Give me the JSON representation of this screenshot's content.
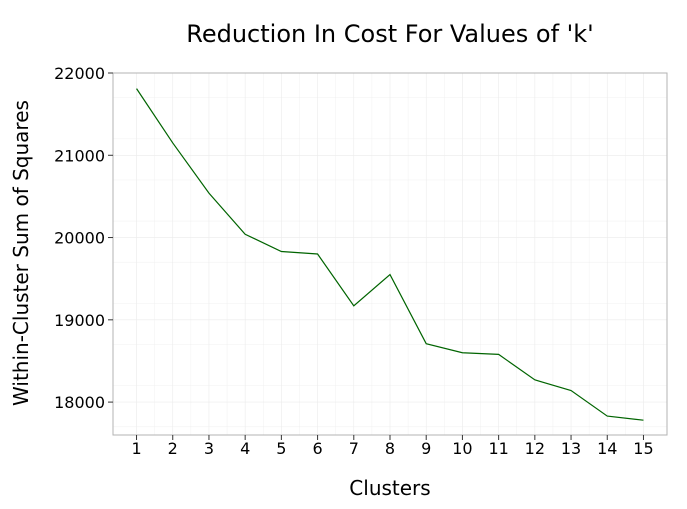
{
  "chart_data": {
    "type": "line",
    "title": "Reduction In Cost For Values of 'k'",
    "xlabel": "Clusters",
    "ylabel": "Within-Cluster Sum of Squares",
    "x": [
      1,
      2,
      3,
      4,
      5,
      6,
      7,
      8,
      9,
      10,
      11,
      12,
      13,
      14,
      15
    ],
    "x_tick_labels": [
      "1",
      "2",
      "3",
      "4",
      "5",
      "6",
      "7",
      "8",
      "9",
      "10",
      "11",
      "12",
      "13",
      "14",
      "15"
    ],
    "y_ticks": [
      18000,
      19000,
      20000,
      21000,
      22000
    ],
    "y_tick_labels": [
      "18000",
      "19000",
      "20000",
      "21000",
      "22000"
    ],
    "xlim": [
      0.35,
      15.65
    ],
    "ylim": [
      17600,
      22000
    ],
    "series": [
      {
        "values": [
          21810,
          21150,
          20540,
          20040,
          19830,
          19800,
          19170,
          19550,
          18710,
          18600,
          18580,
          18270,
          18140,
          17830,
          17780
        ]
      }
    ],
    "grid": true,
    "line_color": "#006400",
    "grid_color": "#ebebeb",
    "panel_border_color": "#b3b3b3"
  }
}
